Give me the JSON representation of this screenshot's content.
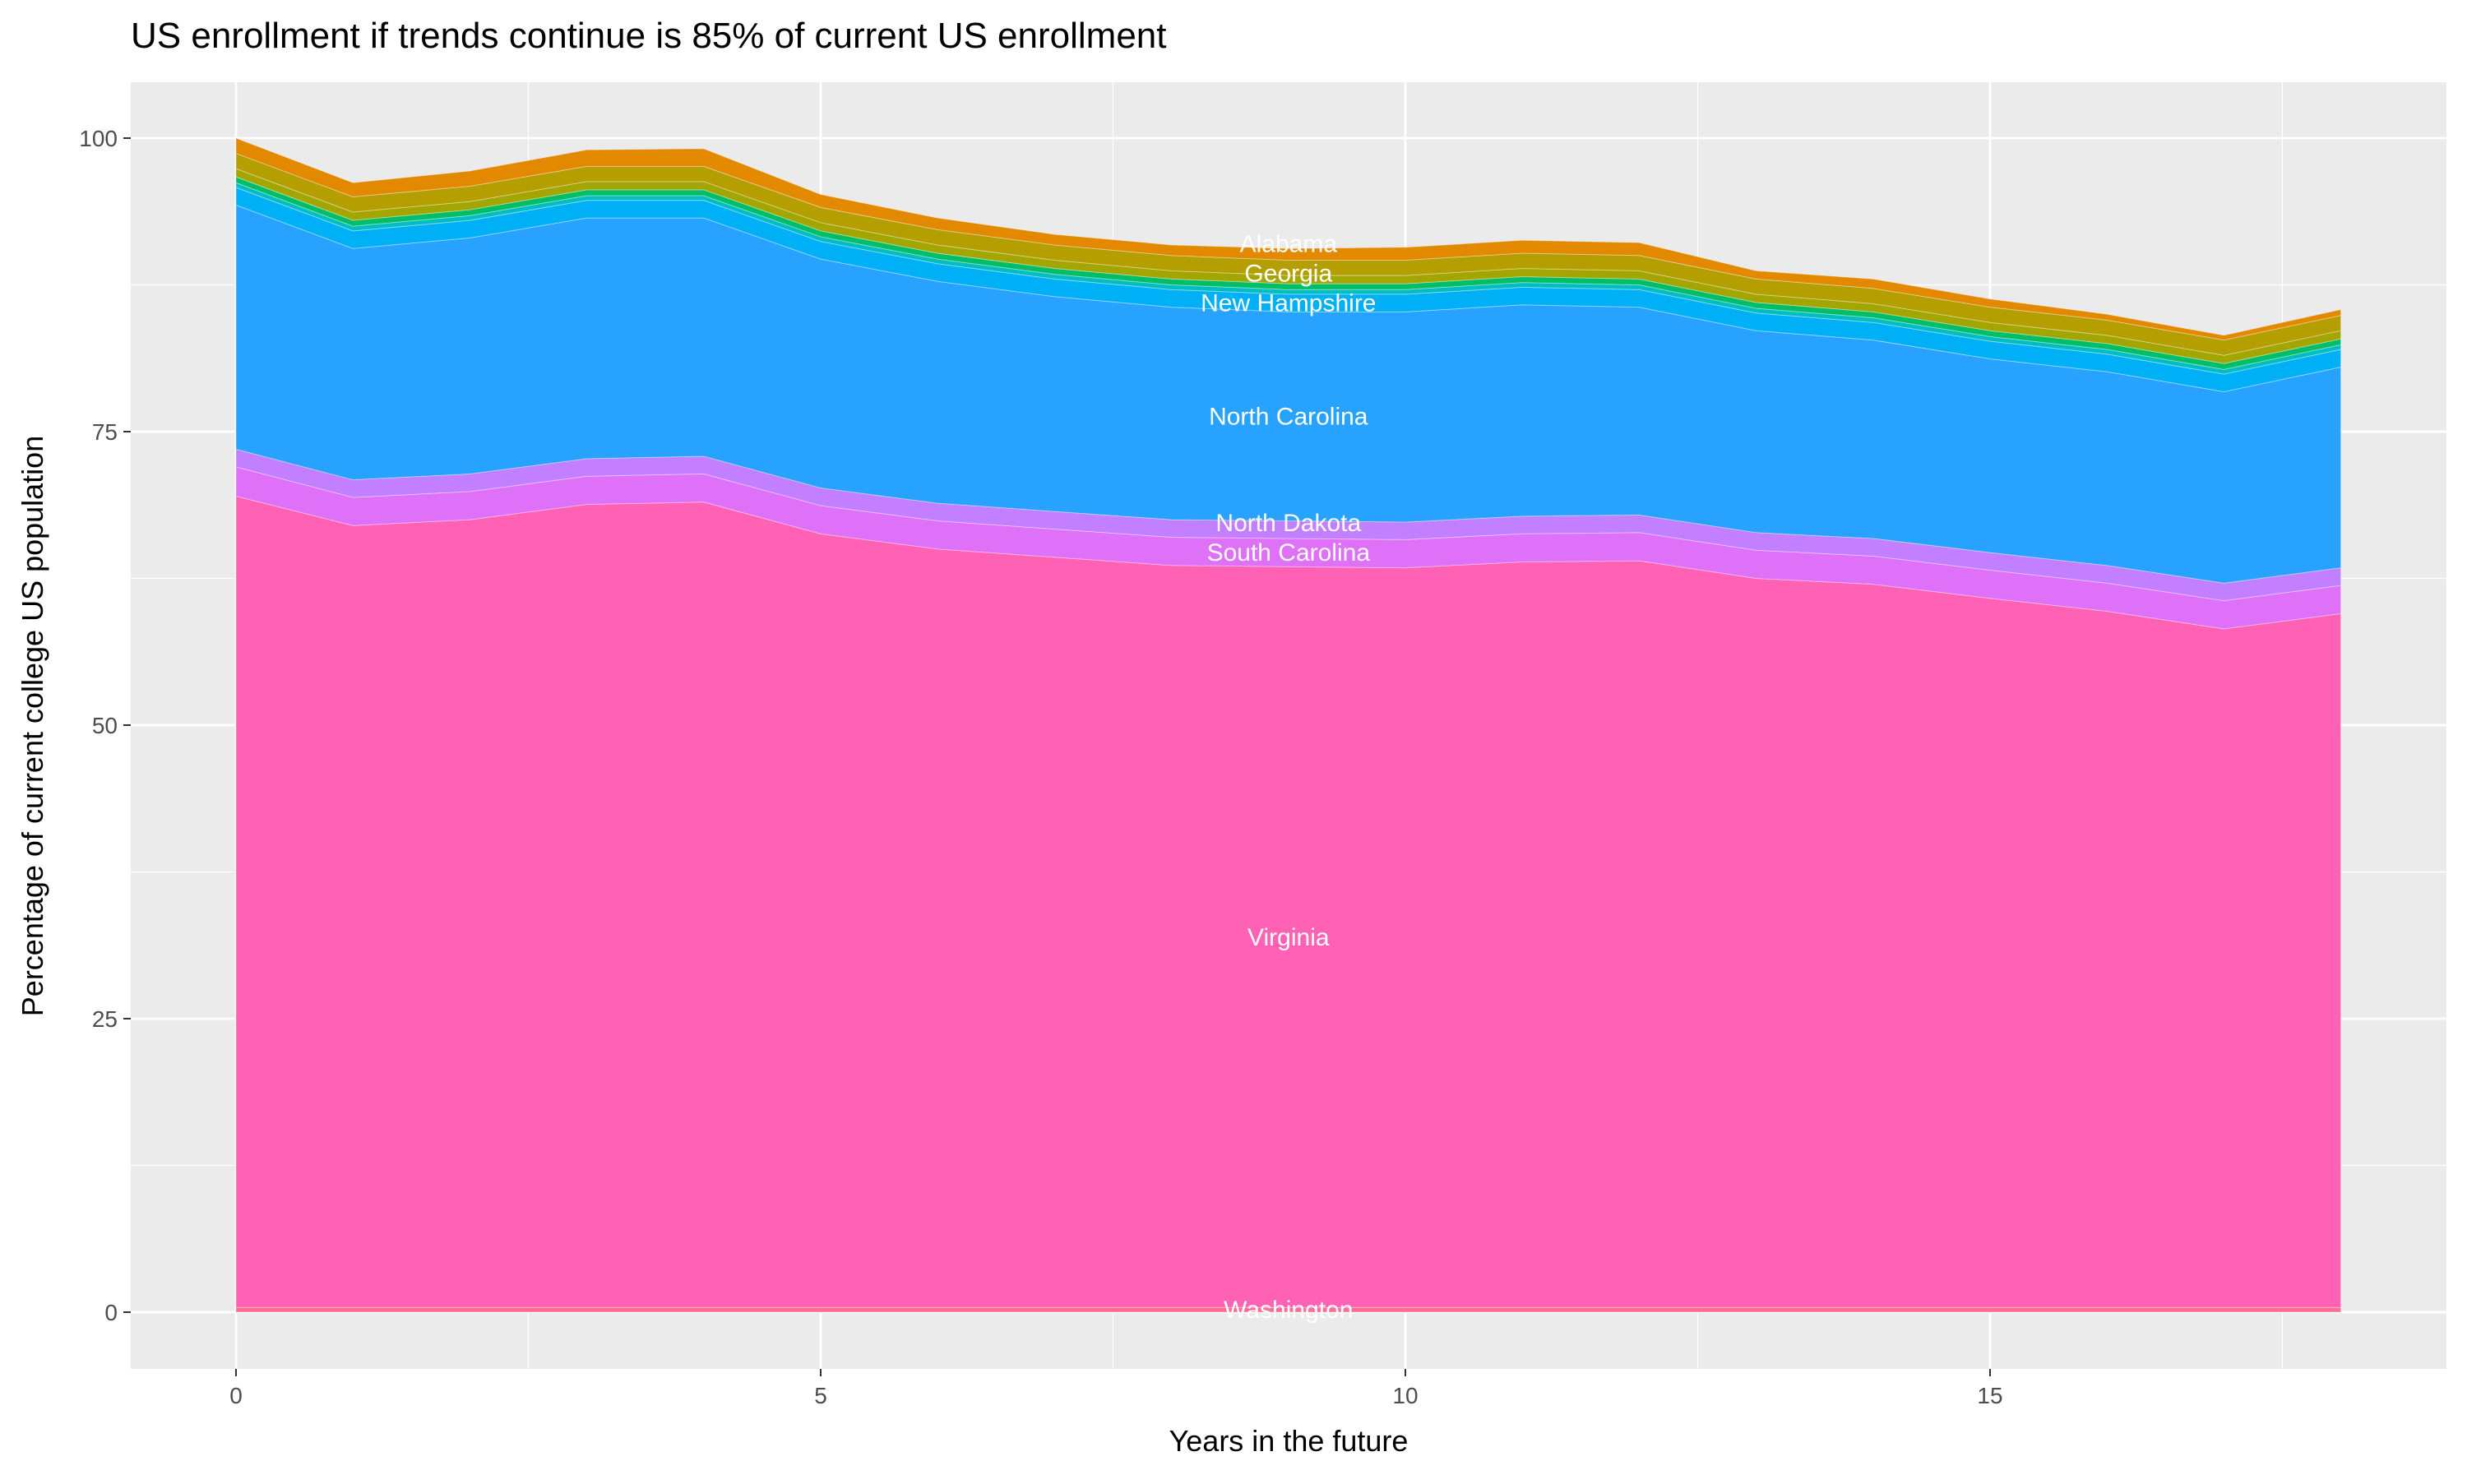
{
  "chart_data": {
    "type": "area",
    "stacked": true,
    "title": "US enrollment if trends continue is 85% of current US enrollment",
    "xlabel": "Years in the future",
    "ylabel": "Percentage of current college US population",
    "xlim": [
      -0.9,
      18.9
    ],
    "ylim": [
      -5,
      104
    ],
    "x_ticks": [
      0,
      5,
      10,
      15
    ],
    "y_ticks": [
      0,
      25,
      50,
      75,
      100
    ],
    "grid": true,
    "legend": "none",
    "panel_background": "#ebebeb",
    "label_x": 9,
    "x": [
      0,
      1,
      2,
      3,
      4,
      5,
      6,
      7,
      8,
      9,
      10,
      11,
      12,
      13,
      14,
      15,
      16,
      17,
      18
    ],
    "series": [
      {
        "name": "Washington",
        "color": "#ff6c91",
        "labeled": true,
        "values": [
          0.4,
          0.4,
          0.4,
          0.4,
          0.4,
          0.4,
          0.4,
          0.4,
          0.4,
          0.4,
          0.4,
          0.4,
          0.4,
          0.4,
          0.4,
          0.4,
          0.4,
          0.4,
          0.4
        ]
      },
      {
        "name": "Virginia",
        "color": "#ff61b4",
        "labeled": true,
        "values": [
          69.1,
          66.6,
          67.1,
          68.4,
          68.6,
          65.9,
          64.6,
          63.9,
          63.2,
          63.1,
          63.0,
          63.5,
          63.6,
          62.1,
          61.6,
          60.4,
          59.3,
          57.8,
          59.1
        ]
      },
      {
        "name": "South Carolina",
        "color": "#df70f8",
        "labeled": true,
        "values": [
          2.5,
          2.4,
          2.4,
          2.4,
          2.4,
          2.4,
          2.4,
          2.4,
          2.4,
          2.4,
          2.4,
          2.4,
          2.4,
          2.4,
          2.4,
          2.4,
          2.4,
          2.4,
          2.4
        ]
      },
      {
        "name": "North Dakota",
        "color": "#c27fff",
        "labeled": true,
        "values": [
          1.5,
          1.5,
          1.5,
          1.5,
          1.5,
          1.5,
          1.5,
          1.5,
          1.5,
          1.5,
          1.5,
          1.5,
          1.5,
          1.5,
          1.5,
          1.5,
          1.5,
          1.5,
          1.5
        ]
      },
      {
        "name": "North Carolina",
        "color": "#28a2ff",
        "labeled": true,
        "values": [
          20.8,
          19.7,
          20.1,
          20.5,
          20.3,
          19.5,
          18.9,
          18.3,
          18.1,
          17.8,
          17.9,
          18.0,
          17.7,
          17.2,
          16.9,
          16.5,
          16.5,
          16.3,
          17.1
        ]
      },
      {
        "name": "New Hampshire",
        "color": "#00b0f6",
        "labeled": true,
        "values": [
          1.5,
          1.5,
          1.5,
          1.5,
          1.5,
          1.5,
          1.5,
          1.5,
          1.5,
          1.5,
          1.5,
          1.5,
          1.5,
          1.5,
          1.5,
          1.5,
          1.5,
          1.5,
          1.5
        ]
      },
      {
        "name": "",
        "color": "#00bdc2",
        "labeled": false,
        "values": [
          0.4,
          0.4,
          0.4,
          0.4,
          0.4,
          0.4,
          0.4,
          0.4,
          0.4,
          0.4,
          0.4,
          0.4,
          0.4,
          0.4,
          0.4,
          0.4,
          0.4,
          0.4,
          0.4
        ]
      },
      {
        "name": "Georgia",
        "color": "#00be67",
        "labeled": true,
        "values": [
          0.5,
          0.5,
          0.5,
          0.5,
          0.5,
          0.5,
          0.5,
          0.5,
          0.5,
          0.5,
          0.5,
          0.5,
          0.5,
          0.5,
          0.5,
          0.5,
          0.5,
          0.5,
          0.5
        ]
      },
      {
        "name": "",
        "color": "#a3a500",
        "labeled": false,
        "values": [
          0.7,
          0.7,
          0.7,
          0.7,
          0.7,
          0.7,
          0.7,
          0.7,
          0.7,
          0.7,
          0.7,
          0.7,
          0.7,
          0.7,
          0.7,
          0.7,
          0.7,
          0.7,
          0.7
        ]
      },
      {
        "name": "Alabama",
        "color": "#b59f00",
        "labeled": true,
        "values": [
          1.3,
          1.3,
          1.3,
          1.3,
          1.3,
          1.3,
          1.3,
          1.3,
          1.3,
          1.3,
          1.3,
          1.3,
          1.3,
          1.3,
          1.3,
          1.3,
          1.3,
          1.3,
          1.3
        ]
      },
      {
        "name": "",
        "color": "#e38900",
        "labeled": false,
        "values": [
          1.3,
          1.2,
          1.3,
          1.4,
          1.5,
          1.1,
          1.0,
          0.9,
          0.9,
          1.0,
          1.1,
          1.1,
          1.1,
          0.7,
          0.8,
          0.7,
          0.5,
          0.4,
          0.5
        ]
      }
    ]
  }
}
